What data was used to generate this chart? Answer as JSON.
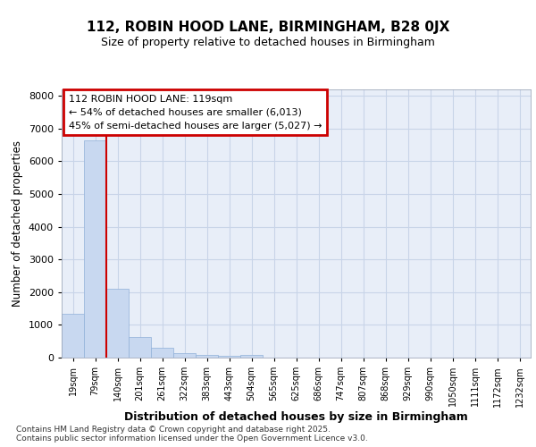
{
  "title": "112, ROBIN HOOD LANE, BIRMINGHAM, B28 0JX",
  "subtitle": "Size of property relative to detached houses in Birmingham",
  "xlabel": "Distribution of detached houses by size in Birmingham",
  "ylabel": "Number of detached properties",
  "categories": [
    "19sqm",
    "79sqm",
    "140sqm",
    "201sqm",
    "261sqm",
    "322sqm",
    "383sqm",
    "443sqm",
    "504sqm",
    "565sqm",
    "625sqm",
    "686sqm",
    "747sqm",
    "807sqm",
    "868sqm",
    "929sqm",
    "990sqm",
    "1050sqm",
    "1111sqm",
    "1172sqm",
    "1232sqm"
  ],
  "values": [
    1330,
    6650,
    2100,
    640,
    310,
    140,
    80,
    50,
    70,
    0,
    0,
    0,
    0,
    0,
    0,
    0,
    0,
    0,
    0,
    0,
    0
  ],
  "bar_color": "#c8d8f0",
  "bar_edge_color": "#90b0d8",
  "grid_color": "#c8d4e8",
  "background_color": "#e8eef8",
  "vline_color": "#cc0000",
  "annotation_text": "112 ROBIN HOOD LANE: 119sqm\n← 54% of detached houses are smaller (6,013)\n45% of semi-detached houses are larger (5,027) →",
  "annotation_box_color": "#cc0000",
  "footer_text": "Contains HM Land Registry data © Crown copyright and database right 2025.\nContains public sector information licensed under the Open Government Licence v3.0.",
  "ylim": [
    0,
    8200
  ],
  "yticks": [
    0,
    1000,
    2000,
    3000,
    4000,
    5000,
    6000,
    7000,
    8000
  ]
}
